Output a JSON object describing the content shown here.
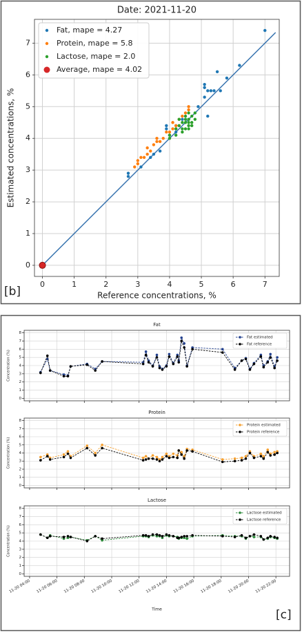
{
  "chart_data": [
    {
      "type": "scatter",
      "title": "Date: 2021-11-20",
      "xlabel": "Reference concentrations, %",
      "ylabel": "Estimated concentrations, %",
      "panel_label": "[b]",
      "xlim": [
        -0.25,
        7.45
      ],
      "ylim": [
        -0.35,
        7.75
      ],
      "xticks": [
        0,
        1,
        2,
        3,
        4,
        5,
        6,
        7
      ],
      "yticks": [
        0,
        1,
        2,
        3,
        4,
        5,
        6,
        7
      ],
      "grid": true,
      "legend": "upper-left",
      "identity_line_color": "#3a75b0",
      "series": [
        {
          "name": "Fat, mape = 4.27",
          "color": "#1f77b4",
          "x": [
            0,
            2.7,
            2.7,
            3.1,
            3.4,
            3.5,
            3.7,
            3.9,
            3.9,
            4.0,
            4.2,
            4.2,
            4.4,
            4.6,
            4.9,
            5.1,
            5.1,
            5.1,
            5.2,
            5.2,
            5.3,
            5.4,
            5.5,
            5.6,
            5.8,
            6.2,
            7.0
          ],
          "values": [
            0,
            2.9,
            2.8,
            3.1,
            3.4,
            3.5,
            3.6,
            4.3,
            4.4,
            4.1,
            4.2,
            4.4,
            4.6,
            4.6,
            5.0,
            5.3,
            5.6,
            5.7,
            5.5,
            4.7,
            5.5,
            5.5,
            6.1,
            5.5,
            5.9,
            6.3,
            7.4
          ]
        },
        {
          "name": "Protein, mape = 5.8",
          "color": "#ff7f0e",
          "x": [
            2.9,
            3.0,
            3.1,
            3.2,
            3.3,
            3.3,
            3.4,
            3.5,
            3.6,
            3.6,
            3.7,
            3.8,
            3.9,
            4.0,
            4.1,
            4.2,
            4.3,
            4.3,
            4.4,
            4.5,
            4.6,
            4.6,
            4.2,
            3.0,
            4.1
          ],
          "values": [
            3.1,
            3.3,
            3.4,
            3.4,
            3.5,
            3.7,
            3.6,
            3.8,
            3.9,
            4.0,
            3.9,
            4.0,
            4.2,
            4.2,
            4.3,
            4.4,
            4.4,
            4.6,
            4.7,
            4.8,
            5.0,
            4.9,
            4.3,
            3.2,
            4.5
          ]
        },
        {
          "name": "Lactose, mape = 2.0",
          "color": "#2ca02c",
          "x": [
            4.0,
            4.0,
            4.2,
            4.3,
            4.4,
            4.4,
            4.5,
            4.5,
            4.5,
            4.6,
            4.6,
            4.6,
            4.7,
            4.7,
            4.7,
            4.8,
            4.8,
            4.4,
            4.6,
            4.3,
            4.5,
            4.2,
            4.6
          ],
          "values": [
            4.0,
            4.1,
            4.1,
            4.4,
            4.3,
            4.5,
            4.3,
            4.6,
            4.7,
            4.4,
            4.5,
            4.6,
            4.5,
            4.7,
            4.4,
            4.6,
            4.8,
            4.2,
            4.3,
            4.6,
            4.5,
            4.3,
            4.8
          ]
        },
        {
          "name": "Average, mape = 4.02",
          "color": "#d62728",
          "x": [
            0
          ],
          "values": [
            0
          ],
          "big": true
        }
      ]
    },
    {
      "type": "line",
      "title": "Fat",
      "ylabel": "Concentration (%)",
      "xlim": [
        3.6,
        23.0
      ],
      "ylim": [
        -0.3,
        8.3
      ],
      "xticks": [
        4,
        6,
        8,
        10,
        12,
        14,
        16,
        18,
        20,
        22
      ],
      "yticks": [
        0,
        1,
        2,
        3,
        4,
        5,
        6,
        7,
        8
      ],
      "grid": true,
      "legend": "upper-right",
      "x": [
        4.8,
        5.3,
        5.5,
        6.5,
        6.8,
        7.0,
        8.2,
        8.8,
        9.3,
        12.3,
        12.5,
        12.7,
        13.0,
        13.3,
        13.5,
        13.7,
        14.0,
        14.2,
        14.5,
        14.8,
        14.9,
        15.1,
        15.3,
        15.5,
        15.9,
        18.1,
        19.0,
        19.5,
        19.8,
        20.1,
        20.4,
        20.9,
        21.1,
        21.4,
        21.6,
        21.9,
        22.1
      ],
      "series": [
        {
          "name": "Fat estimated",
          "color": "#24428f",
          "values": [
            3.2,
            4.8,
            3.4,
            2.9,
            2.8,
            3.9,
            4.2,
            3.6,
            4.5,
            4.4,
            5.7,
            4.6,
            4.0,
            5.3,
            3.9,
            3.6,
            4.0,
            5.4,
            4.3,
            5.3,
            4.6,
            7.4,
            6.7,
            4.0,
            6.2,
            6.0,
            3.7,
            4.6,
            4.9,
            3.6,
            4.3,
            5.3,
            4.0,
            4.5,
            5.4,
            3.9,
            5.0
          ]
        },
        {
          "name": "Fat reference",
          "color": "#000000",
          "values": [
            3.1,
            5.2,
            3.4,
            2.7,
            2.7,
            3.9,
            4.1,
            3.4,
            4.5,
            4.2,
            5.3,
            4.4,
            3.9,
            5.0,
            3.7,
            3.5,
            3.9,
            5.1,
            4.2,
            5.1,
            4.4,
            7.0,
            6.2,
            3.9,
            6.0,
            5.6,
            3.5,
            4.6,
            4.8,
            3.5,
            4.2,
            5.1,
            3.8,
            4.4,
            5.0,
            3.7,
            4.6
          ]
        }
      ]
    },
    {
      "type": "line",
      "title": "Protein",
      "ylabel": "Concentration (%)",
      "xlim": [
        3.6,
        23.0
      ],
      "ylim": [
        -0.3,
        8.3
      ],
      "xticks": [
        4,
        6,
        8,
        10,
        12,
        14,
        16,
        18,
        20,
        22
      ],
      "yticks": [
        0,
        1,
        2,
        3,
        4,
        5,
        6,
        7,
        8
      ],
      "grid": true,
      "legend": "upper-right",
      "x": [
        4.8,
        5.3,
        5.5,
        6.5,
        6.8,
        7.0,
        8.2,
        8.8,
        9.3,
        12.3,
        12.5,
        12.7,
        13.0,
        13.3,
        13.5,
        13.7,
        14.0,
        14.2,
        14.5,
        14.8,
        14.9,
        15.1,
        15.3,
        15.5,
        15.9,
        18.1,
        19.0,
        19.5,
        19.8,
        20.1,
        20.4,
        20.9,
        21.1,
        21.4,
        21.6,
        21.9,
        22.1
      ],
      "series": [
        {
          "name": "Protein estimated",
          "color": "#f5a030",
          "values": [
            3.5,
            3.8,
            3.4,
            3.8,
            4.2,
            3.6,
            4.9,
            4.0,
            5.0,
            3.4,
            3.6,
            3.3,
            3.7,
            3.5,
            3.2,
            3.5,
            3.9,
            3.6,
            3.9,
            3.7,
            4.3,
            4.1,
            3.6,
            4.5,
            4.4,
            3.2,
            3.3,
            3.4,
            3.6,
            4.2,
            3.6,
            3.9,
            3.6,
            4.4,
            3.9,
            4.1,
            4.2
          ]
        },
        {
          "name": "Protein reference",
          "color": "#000000",
          "values": [
            3.1,
            3.6,
            3.2,
            3.5,
            3.9,
            3.4,
            4.6,
            3.7,
            4.6,
            3.1,
            3.2,
            3.3,
            3.3,
            3.2,
            3.0,
            3.2,
            3.6,
            3.4,
            3.5,
            3.4,
            4.3,
            3.8,
            3.3,
            4.3,
            4.2,
            2.9,
            3.0,
            3.1,
            3.3,
            4.0,
            3.4,
            3.6,
            3.3,
            4.1,
            3.7,
            3.8,
            4.0
          ]
        }
      ]
    },
    {
      "type": "line",
      "title": "Lactose",
      "ylabel": "Concentration (%)",
      "xlabel": "Time",
      "panel_label": "[c]",
      "xlim": [
        3.6,
        23.0
      ],
      "ylim": [
        -0.3,
        8.3
      ],
      "xticks": [
        {
          "value": 4,
          "label": "11-20 04:00"
        },
        {
          "value": 6,
          "label": "11-20 06:00"
        },
        {
          "value": 8,
          "label": "11-20 08:00"
        },
        {
          "value": 10,
          "label": "11-20 10:00"
        },
        {
          "value": 12,
          "label": "11-20 12:00"
        },
        {
          "value": 14,
          "label": "11-20 14:00"
        },
        {
          "value": 16,
          "label": "11-20 16:00"
        },
        {
          "value": 18,
          "label": "11-20 18:00"
        },
        {
          "value": 20,
          "label": "11-20 20:00"
        },
        {
          "value": 22,
          "label": "11-20 22:00"
        }
      ],
      "yticks": [
        0,
        1,
        2,
        3,
        4,
        5,
        6,
        7,
        8
      ],
      "grid": true,
      "legend": "upper-right",
      "x": [
        4.8,
        5.3,
        5.5,
        6.5,
        6.8,
        7.0,
        8.2,
        8.8,
        9.3,
        12.3,
        12.5,
        12.7,
        13.0,
        13.3,
        13.5,
        13.7,
        14.0,
        14.2,
        14.5,
        14.8,
        14.9,
        15.1,
        15.3,
        15.5,
        15.9,
        18.1,
        19.0,
        19.5,
        19.8,
        20.1,
        20.4,
        20.9,
        21.1,
        21.4,
        21.6,
        21.9,
        22.1
      ],
      "series": [
        {
          "name": "Lactose estimated",
          "color": "#2e8b3c",
          "values": [
            4.8,
            4.4,
            4.7,
            4.3,
            4.4,
            4.5,
            4.1,
            4.6,
            4.1,
            4.6,
            4.6,
            4.5,
            4.7,
            4.6,
            4.6,
            4.4,
            4.7,
            4.6,
            4.6,
            4.5,
            4.3,
            4.4,
            4.4,
            4.3,
            4.6,
            4.7,
            4.6,
            4.6,
            4.3,
            4.6,
            4.5,
            4.5,
            4.2,
            4.3,
            4.5,
            4.4,
            4.3
          ]
        },
        {
          "name": "Lactose reference",
          "color": "#000000",
          "values": [
            4.8,
            4.4,
            4.6,
            4.5,
            4.6,
            4.5,
            4.0,
            4.6,
            4.3,
            4.7,
            4.7,
            4.6,
            4.8,
            4.8,
            4.7,
            4.6,
            4.8,
            4.7,
            4.6,
            4.4,
            4.4,
            4.5,
            4.6,
            4.6,
            4.7,
            4.6,
            4.5,
            4.7,
            4.4,
            4.6,
            4.8,
            4.6,
            4.2,
            4.4,
            4.6,
            4.5,
            4.4
          ]
        }
      ]
    }
  ]
}
